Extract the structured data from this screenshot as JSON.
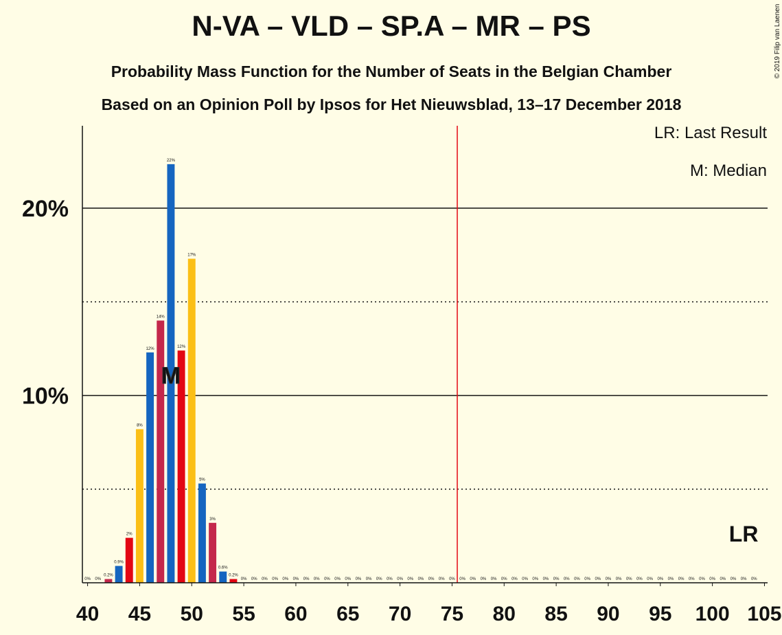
{
  "chart_data": {
    "type": "bar",
    "title": "N-VA – VLD – SP.A – MR – PS",
    "subtitle": "Probability Mass Function for the Number of Seats in the Belgian Chamber",
    "subtitle2": "Based on an Opinion Poll by Ipsos for Het Nieuwsblad, 13–17 December 2018",
    "copyright": "© 2019 Filip van Laenen",
    "legend": [
      "LR: Last Result",
      "M: Median"
    ],
    "x": [
      40,
      41,
      42,
      43,
      44,
      45,
      46,
      47,
      48,
      49,
      50,
      51,
      52,
      53,
      54,
      55,
      56,
      57,
      58,
      59,
      60,
      61,
      62,
      63,
      64,
      65,
      66,
      67,
      68,
      69,
      70,
      71,
      72,
      73,
      74,
      75,
      76,
      77,
      78,
      79,
      80,
      81,
      82,
      83,
      84,
      85,
      86,
      87,
      88,
      89,
      90,
      91,
      92,
      93,
      94,
      95,
      96,
      97,
      98,
      99,
      100,
      101,
      102,
      103,
      104
    ],
    "values": [
      0,
      0,
      0.2,
      0.9,
      2.4,
      8.2,
      12.3,
      14,
      22.35,
      12.4,
      17.3,
      5.3,
      3.2,
      0.6,
      0.2,
      0,
      0,
      0,
      0,
      0,
      0,
      0,
      0,
      0,
      0,
      0,
      0,
      0,
      0,
      0,
      0,
      0,
      0,
      0,
      0,
      0,
      0,
      0,
      0,
      0,
      0,
      0,
      0,
      0,
      0,
      0,
      0,
      0,
      0,
      0,
      0,
      0,
      0,
      0,
      0,
      0,
      0,
      0,
      0,
      0,
      0,
      0,
      0,
      0,
      0
    ],
    "value_labels": [
      "0%",
      "0%",
      "0.2%",
      "0.9%",
      "2%",
      "8%",
      "12%",
      "14%",
      "22%",
      "12%",
      "17%",
      "5%",
      "3%",
      "0.6%",
      "0.2%",
      "0%",
      "0%",
      "0%",
      "0%",
      "0%",
      "0%",
      "0%",
      "0%",
      "0%",
      "0%",
      "0%",
      "0%",
      "0%",
      "0%",
      "0%",
      "0%",
      "0%",
      "0%",
      "0%",
      "0%",
      "0%",
      "0%",
      "0%",
      "0%",
      "0%",
      "0%",
      "0%",
      "0%",
      "0%",
      "0%",
      "0%",
      "0%",
      "0%",
      "0%",
      "0%",
      "0%",
      "0%",
      "0%",
      "0%",
      "0%",
      "0%",
      "0%",
      "0%",
      "0%",
      "0%",
      "0%",
      "0%",
      "0%",
      "0%",
      "0%"
    ],
    "colors": [
      "#fbbf16",
      "#1565c0",
      "#c4284b",
      "#1565c0",
      "#e30613",
      "#fbbf16",
      "#1565c0",
      "#c4284b",
      "#1565c0",
      "#e30613",
      "#fbbf16",
      "#1565c0",
      "#c4284b",
      "#1565c0",
      "#e30613",
      "#fbbf16",
      "#1565c0",
      "#c4284b",
      "#1565c0",
      "#e30613",
      "#fbbf16",
      "#1565c0",
      "#c4284b",
      "#1565c0",
      "#e30613",
      "#fbbf16",
      "#1565c0",
      "#c4284b",
      "#1565c0",
      "#e30613",
      "#fbbf16",
      "#1565c0",
      "#c4284b",
      "#1565c0",
      "#e30613",
      "#fbbf16",
      "#1565c0",
      "#c4284b",
      "#1565c0",
      "#e30613",
      "#fbbf16",
      "#1565c0",
      "#c4284b",
      "#1565c0",
      "#e30613",
      "#fbbf16",
      "#1565c0",
      "#c4284b",
      "#1565c0",
      "#e30613",
      "#fbbf16",
      "#1565c0",
      "#c4284b",
      "#1565c0",
      "#e30613",
      "#fbbf16",
      "#1565c0",
      "#c4284b",
      "#1565c0",
      "#e30613",
      "#fbbf16",
      "#1565c0",
      "#c4284b",
      "#1565c0",
      "#e30613"
    ],
    "xlim": [
      39.5,
      105.3
    ],
    "xticks": [
      40,
      45,
      50,
      55,
      60,
      65,
      70,
      75,
      80,
      85,
      90,
      95,
      100,
      105
    ],
    "ylim": [
      0,
      24.4
    ],
    "yticks": [
      {
        "value": 10,
        "label": "10%"
      },
      {
        "value": 20,
        "label": "20%"
      }
    ],
    "minor_yticks": [
      5,
      15
    ],
    "majority": 76,
    "majority_color": "#e30613",
    "median": 48,
    "median_label": "M",
    "last_result": 103,
    "last_result_label": "LR"
  }
}
